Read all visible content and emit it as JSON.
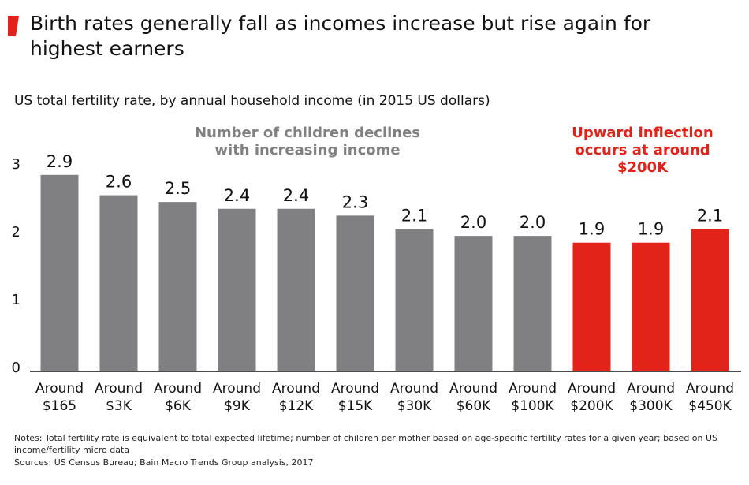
{
  "chart_data": {
    "type": "bar",
    "title": "Birth rates generally fall as incomes increase but rise again for highest earners",
    "subtitle": "US total fertility rate, by annual household income (in 2015 US dollars)",
    "categories": [
      "Around $165",
      "Around $3K",
      "Around $6K",
      "Around $9K",
      "Around $12K",
      "Around $15K",
      "Around $30K",
      "Around $60K",
      "Around $100K",
      "Around $200K",
      "Around $300K",
      "Around $450K"
    ],
    "values": [
      2.9,
      2.6,
      2.5,
      2.4,
      2.4,
      2.3,
      2.1,
      2.0,
      2.0,
      1.9,
      1.9,
      2.1
    ],
    "value_labels": [
      "2.9",
      "2.6",
      "2.5",
      "2.4",
      "2.4",
      "2.3",
      "2.1",
      "2.0",
      "2.0",
      "1.9",
      "1.9",
      "2.1"
    ],
    "colors": [
      "#808083",
      "#808083",
      "#808083",
      "#808083",
      "#808083",
      "#808083",
      "#808083",
      "#808083",
      "#808083",
      "#e2231a",
      "#e2231a",
      "#e2231a"
    ],
    "ylim": [
      0,
      3.2
    ],
    "yticks": [
      0,
      1,
      2,
      3
    ],
    "grid": false,
    "annotations": [
      {
        "text": "Number of children declines with increasing income",
        "color": "#808083"
      },
      {
        "text": "Upward inflection occurs at around $200K",
        "color": "#e2231a"
      }
    ],
    "notes": "Notes: Total fertility rate is equivalent to total expected lifetime; number of children per mother based on age-specific fertility rates for a given year; based on US income/fertility micro data",
    "sources": "Sources: US Census Bureau; Bain Macro Trends Group analysis, 2017"
  }
}
